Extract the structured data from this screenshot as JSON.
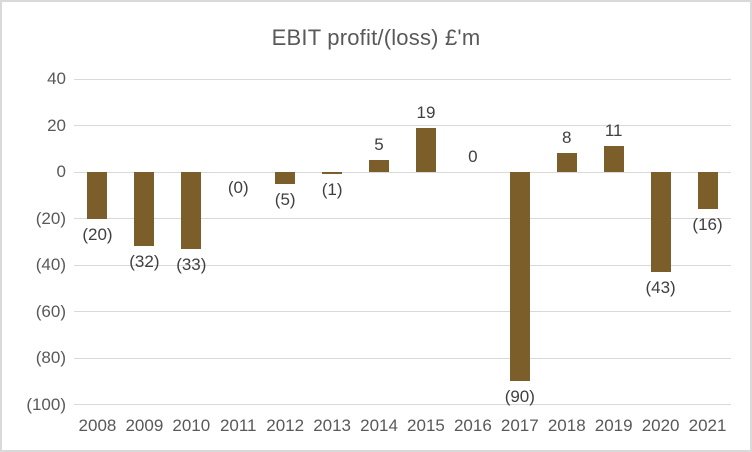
{
  "chart_data": {
    "type": "bar",
    "title": "EBIT profit/(loss) £'m",
    "categories": [
      "2008",
      "2009",
      "2010",
      "2011",
      "2012",
      "2013",
      "2014",
      "2015",
      "2016",
      "2017",
      "2018",
      "2019",
      "2020",
      "2021"
    ],
    "values": [
      -20,
      -32,
      -33,
      0,
      -5,
      -1,
      5,
      19,
      0,
      -90,
      8,
      11,
      -43,
      -16
    ],
    "data_labels": [
      "(20)",
      "(32)",
      "(33)",
      "(0)",
      "(5)",
      "(1)",
      "5",
      "19",
      "0",
      "(90)",
      "8",
      "11",
      "(43)",
      "(16)"
    ],
    "xlabel": "",
    "ylabel": "",
    "y_axis": {
      "ticks": [
        40,
        20,
        0,
        -20,
        -40,
        -60,
        -80,
        -100
      ],
      "tick_labels": [
        "40",
        "20",
        "0",
        "(20)",
        "(40)",
        "(60)",
        "(80)",
        "(100)"
      ],
      "ylim": [
        -100,
        40
      ]
    },
    "grid": true,
    "legend": false,
    "colors": {
      "bar": "#7C5E2B",
      "gridline": "#D9D9D9",
      "border": "#D9D9D9",
      "title": "#595959",
      "axis_label": "#595959",
      "data_label": "#404040",
      "background": "#FFFFFF"
    }
  }
}
